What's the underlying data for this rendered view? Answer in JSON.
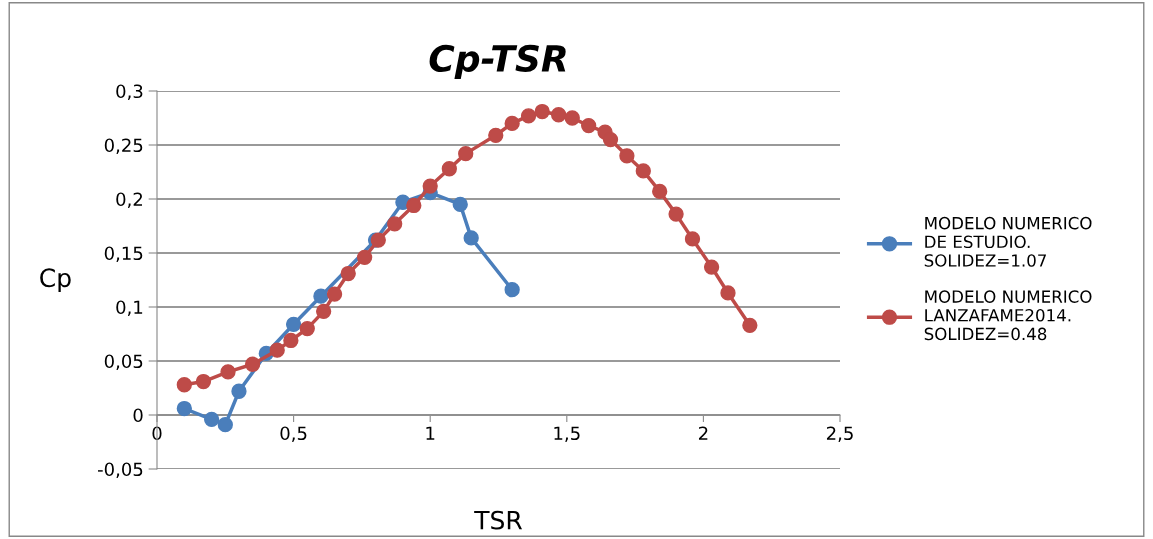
{
  "chart_data": {
    "type": "line",
    "title": "Cp-TSR",
    "xlabel": "TSR",
    "ylabel": "Cp",
    "xlim": [
      0,
      2.5
    ],
    "xticks": [
      0,
      {
        "value": 0.5,
        "label": "0,5"
      },
      1,
      {
        "value": 1.5,
        "label": "1,5"
      },
      2,
      {
        "value": 2.5,
        "label": "2,5"
      }
    ],
    "ylim": [
      -0.05,
      0.3
    ],
    "yticks": [
      {
        "value": -0.05,
        "label": "-0,05"
      },
      0,
      {
        "value": 0.05,
        "label": "0,05"
      },
      {
        "value": 0.1,
        "label": "0,1"
      },
      {
        "value": 0.15,
        "label": "0,15"
      },
      {
        "value": 0.2,
        "label": "0,2"
      },
      {
        "value": 0.25,
        "label": "0,25"
      },
      {
        "value": 0.3,
        "label": "0,3"
      }
    ],
    "grid": "y",
    "legend": "right",
    "marker": "circle",
    "line_style": "solid",
    "series": [
      {
        "name": "MODELO NUMERICO DE ESTUDIO. SOLIDEZ=1.07",
        "color": "#4a7ebb",
        "x": [
          0.1,
          0.2,
          0.25,
          0.3,
          0.4,
          0.5,
          0.6,
          0.8,
          0.9,
          1.0,
          1.11,
          1.15,
          1.3
        ],
        "values": [
          0.006,
          -0.004,
          -0.009,
          0.022,
          0.057,
          0.084,
          0.11,
          0.162,
          0.197,
          0.206,
          0.195,
          0.164,
          0.116
        ]
      },
      {
        "name": "MODELO NUMERICO LANZAFAME2014. SOLIDEZ=0.48",
        "color": "#be4b48",
        "x": [
          0.1,
          0.17,
          0.26,
          0.35,
          0.44,
          0.49,
          0.55,
          0.61,
          0.65,
          0.7,
          0.76,
          0.81,
          0.87,
          0.94,
          1.0,
          1.07,
          1.13,
          1.24,
          1.3,
          1.36,
          1.41,
          1.47,
          1.52,
          1.58,
          1.64,
          1.66,
          1.72,
          1.78,
          1.84,
          1.9,
          1.96,
          2.03,
          2.09,
          2.17
        ],
        "values": [
          0.028,
          0.031,
          0.04,
          0.047,
          0.06,
          0.069,
          0.08,
          0.096,
          0.112,
          0.131,
          0.146,
          0.162,
          0.177,
          0.194,
          0.212,
          0.228,
          0.242,
          0.259,
          0.27,
          0.277,
          0.281,
          0.278,
          0.275,
          0.268,
          0.262,
          0.255,
          0.24,
          0.226,
          0.207,
          0.186,
          0.163,
          0.137,
          0.113,
          0.083
        ]
      }
    ]
  }
}
